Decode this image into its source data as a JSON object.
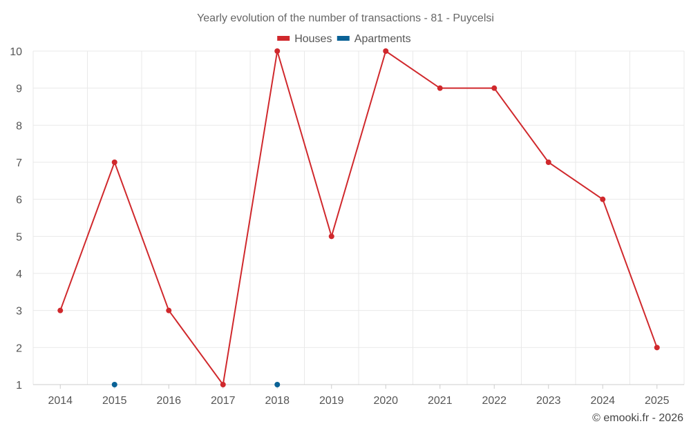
{
  "chart_data": {
    "type": "line",
    "title": "Yearly evolution of the number of transactions - 81 - Puycelsi",
    "x": [
      "2014",
      "2015",
      "2016",
      "2017",
      "2018",
      "2019",
      "2020",
      "2021",
      "2022",
      "2023",
      "2024",
      "2025"
    ],
    "ylim": [
      1,
      10
    ],
    "yticks": [
      1,
      2,
      3,
      4,
      5,
      6,
      7,
      8,
      9,
      10
    ],
    "grid": true,
    "legend_position": "top-center",
    "series": [
      {
        "name": "Houses",
        "color": "#d0282c",
        "values": [
          3,
          7,
          3,
          1,
          10,
          5,
          10,
          9,
          9,
          7,
          6,
          2
        ]
      },
      {
        "name": "Apartments",
        "color": "#0a6296",
        "values": [
          null,
          1,
          null,
          null,
          1,
          null,
          null,
          null,
          null,
          null,
          null,
          null
        ]
      }
    ],
    "credit": "© emooki.fr - 2026"
  }
}
